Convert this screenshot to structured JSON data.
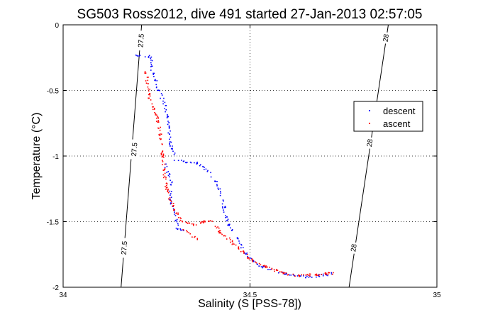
{
  "chart_data": {
    "type": "scatter",
    "title": "SG503 Ross2012, dive 491 started 27-Jan-2013 02:57:05",
    "xlabel": "Salinity (S [PSS-78])",
    "ylabel": "Temperature (°C)",
    "xlim": [
      34,
      35
    ],
    "ylim": [
      -2,
      0
    ],
    "x_ticks": [
      34,
      34.5,
      35
    ],
    "x_tick_labels": [
      "34",
      "34.5",
      "35"
    ],
    "y_ticks": [
      0,
      -0.5,
      -1,
      -1.5,
      -2
    ],
    "y_tick_labels": [
      "0",
      "-0.5",
      "-1",
      "-1.5",
      "-2"
    ],
    "grid": true,
    "legend_position": "right",
    "isopycnals": [
      {
        "value": 27.5,
        "x_at_top": 34.21,
        "x_at_bottom": 34.155,
        "labels": [
          {
            "text": "27.5",
            "x": 34.208,
            "y": -0.12
          },
          {
            "text": "27.5",
            "x": 34.19,
            "y": -0.95
          },
          {
            "text": "27.5",
            "x": 34.163,
            "y": -1.7
          }
        ]
      },
      {
        "value": 28,
        "x_at_top": 34.87,
        "x_at_bottom": 34.765,
        "labels": [
          {
            "text": "28",
            "x": 34.863,
            "y": -0.1
          },
          {
            "text": "28",
            "x": 34.82,
            "y": -0.9
          },
          {
            "text": "28",
            "x": 34.777,
            "y": -1.7
          }
        ]
      }
    ],
    "series": [
      {
        "name": "descent",
        "color": "#0000ff",
        "marker": "point",
        "path": [
          [
            34.19,
            -0.23
          ],
          [
            34.21,
            -0.23
          ],
          [
            34.235,
            -0.24
          ],
          [
            34.235,
            -0.28
          ],
          [
            34.237,
            -0.35
          ],
          [
            34.245,
            -0.42
          ],
          [
            34.255,
            -0.5
          ],
          [
            34.27,
            -0.6
          ],
          [
            34.28,
            -0.75
          ],
          [
            34.285,
            -0.9
          ],
          [
            34.3,
            -1.03
          ],
          [
            34.36,
            -1.05
          ],
          [
            34.39,
            -1.12
          ],
          [
            34.41,
            -1.2
          ],
          [
            34.42,
            -1.28
          ],
          [
            34.43,
            -1.4
          ],
          [
            34.44,
            -1.52
          ],
          [
            34.46,
            -1.6
          ],
          [
            34.475,
            -1.68
          ],
          [
            34.49,
            -1.75
          ],
          [
            34.52,
            -1.83
          ],
          [
            34.56,
            -1.87
          ],
          [
            34.6,
            -1.9
          ],
          [
            34.65,
            -1.92
          ],
          [
            34.7,
            -1.9
          ],
          [
            34.72,
            -1.89
          ]
        ],
        "branch": [
          [
            34.27,
            -1.05
          ],
          [
            34.29,
            -1.2
          ],
          [
            34.285,
            -1.35
          ],
          [
            34.3,
            -1.45
          ],
          [
            34.305,
            -1.55
          ],
          [
            34.33,
            -1.57
          ]
        ]
      },
      {
        "name": "ascent",
        "color": "#ff0000",
        "marker": "point",
        "path": [
          [
            34.22,
            -0.35
          ],
          [
            34.225,
            -0.45
          ],
          [
            34.23,
            -0.55
          ],
          [
            34.25,
            -0.7
          ],
          [
            34.26,
            -0.85
          ],
          [
            34.265,
            -1.0
          ],
          [
            34.27,
            -1.15
          ],
          [
            34.28,
            -1.3
          ],
          [
            34.3,
            -1.42
          ],
          [
            34.32,
            -1.5
          ],
          [
            34.35,
            -1.52
          ],
          [
            34.38,
            -1.49
          ],
          [
            34.4,
            -1.5
          ],
          [
            34.42,
            -1.58
          ],
          [
            34.45,
            -1.65
          ],
          [
            34.47,
            -1.7
          ],
          [
            34.5,
            -1.78
          ],
          [
            34.54,
            -1.84
          ],
          [
            34.58,
            -1.88
          ],
          [
            34.62,
            -1.91
          ],
          [
            34.66,
            -1.9
          ],
          [
            34.72,
            -1.89
          ]
        ],
        "branch": [
          [
            34.32,
            -1.55
          ],
          [
            34.34,
            -1.6
          ],
          [
            34.36,
            -1.63
          ]
        ]
      }
    ]
  }
}
